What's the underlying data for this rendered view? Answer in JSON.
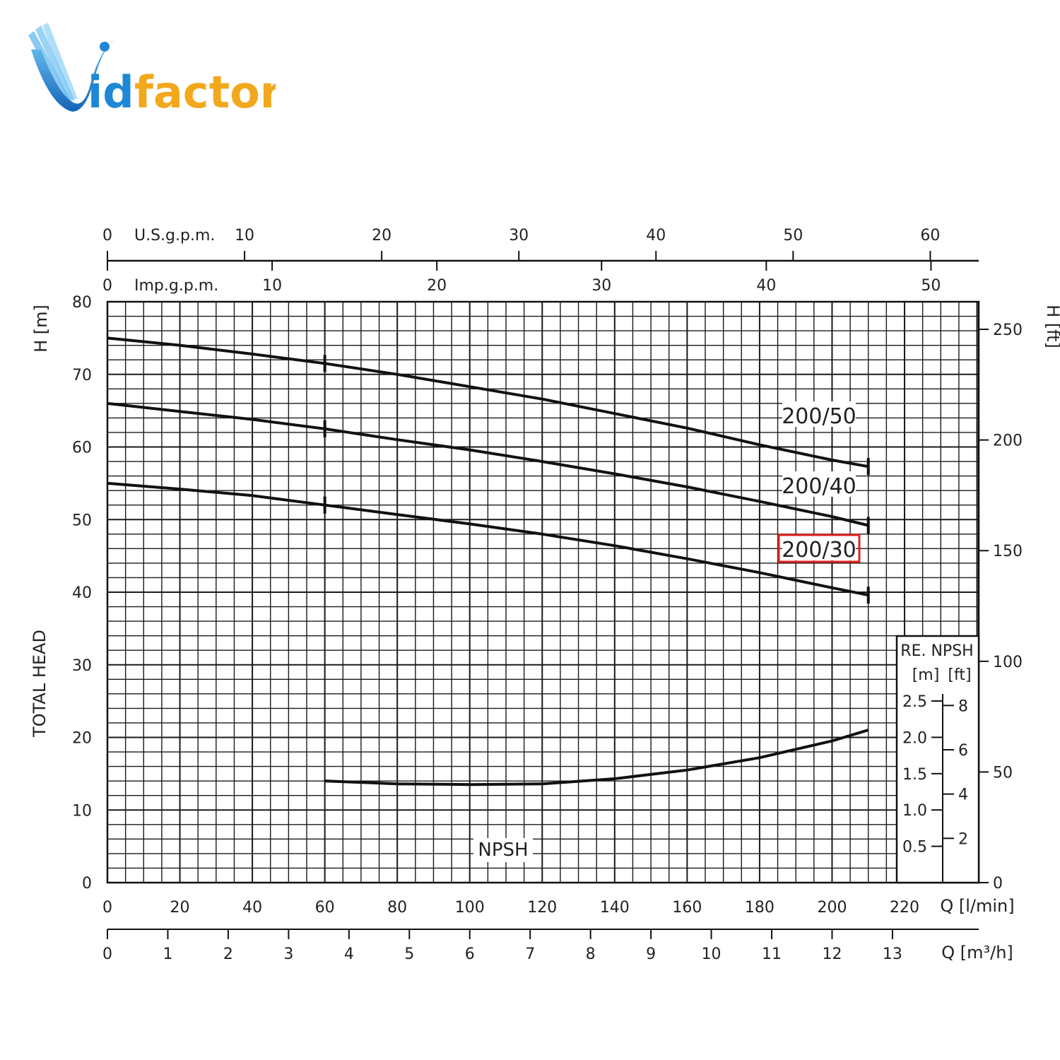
{
  "logo": {
    "text_main": "id",
    "text_accent": "factor",
    "mark": "V",
    "colors": {
      "blue": "#1e88d6",
      "orange": "#f2a81d"
    }
  },
  "chart_data": {
    "type": "line",
    "title": "",
    "xlabel": "Q [l/min]",
    "ylabel_left": "H [m]",
    "ylabel_left_side": "TOTAL HEAD",
    "ylabel_right": "H [ft]",
    "xlim": [
      0,
      240
    ],
    "ylim": [
      0,
      80
    ],
    "x_ticks": [
      0,
      20,
      40,
      60,
      80,
      100,
      120,
      140,
      160,
      180,
      200,
      220
    ],
    "y_ticks": [
      0,
      10,
      20,
      30,
      40,
      50,
      60,
      70,
      80
    ],
    "ft_ticks": [
      0,
      50,
      100,
      150,
      200,
      250
    ],
    "grid": true,
    "top_axes": [
      {
        "label": "U.S.g.p.m.",
        "factor_lpm": 3.785,
        "ticks": [
          0,
          10,
          20,
          30,
          40,
          50,
          60
        ]
      },
      {
        "label": "Imp.g.p.m.",
        "factor_lpm": 4.546,
        "ticks": [
          0,
          10,
          20,
          30,
          40,
          50
        ]
      }
    ],
    "bottom_axis": {
      "label": "Q [m³/h]",
      "factor_lpm": 16.667,
      "ticks": [
        0,
        1,
        2,
        3,
        4,
        5,
        6,
        7,
        8,
        9,
        10,
        11,
        12,
        13
      ]
    },
    "series": [
      {
        "name": "200/50",
        "highlight": false,
        "x": [
          0,
          20,
          40,
          60,
          80,
          100,
          120,
          140,
          160,
          180,
          200,
          210
        ],
        "y": [
          75,
          74,
          72.8,
          71.5,
          70,
          68.3,
          66.6,
          64.6,
          62.6,
          60.3,
          58.2,
          57.3
        ]
      },
      {
        "name": "200/40",
        "highlight": false,
        "x": [
          0,
          20,
          40,
          60,
          80,
          100,
          120,
          140,
          160,
          180,
          200,
          210
        ],
        "y": [
          66,
          64.9,
          63.8,
          62.5,
          61,
          59.6,
          58,
          56.3,
          54.5,
          52.5,
          50.4,
          49.2
        ]
      },
      {
        "name": "200/30",
        "highlight": true,
        "x": [
          0,
          20,
          40,
          60,
          80,
          100,
          120,
          140,
          160,
          180,
          200,
          210
        ],
        "y": [
          55,
          54.2,
          53.3,
          52,
          50.7,
          49.4,
          48,
          46.4,
          44.6,
          42.7,
          40.6,
          39.6
        ]
      }
    ],
    "npsh": {
      "name": "NPSH",
      "axis_title": "RE. NPSH",
      "units": [
        "[m]",
        "[ft]"
      ],
      "m_ticks": [
        "0.5",
        "1.0",
        "1.5",
        "2.0",
        "2.5"
      ],
      "ft_ticks": [
        2,
        4,
        6,
        8
      ],
      "x": [
        60,
        80,
        100,
        120,
        140,
        160,
        180,
        200,
        210
      ],
      "y_m": [
        1.4,
        1.36,
        1.35,
        1.36,
        1.43,
        1.55,
        1.72,
        1.95,
        2.1
      ]
    },
    "highlight_color": "#e02020"
  }
}
